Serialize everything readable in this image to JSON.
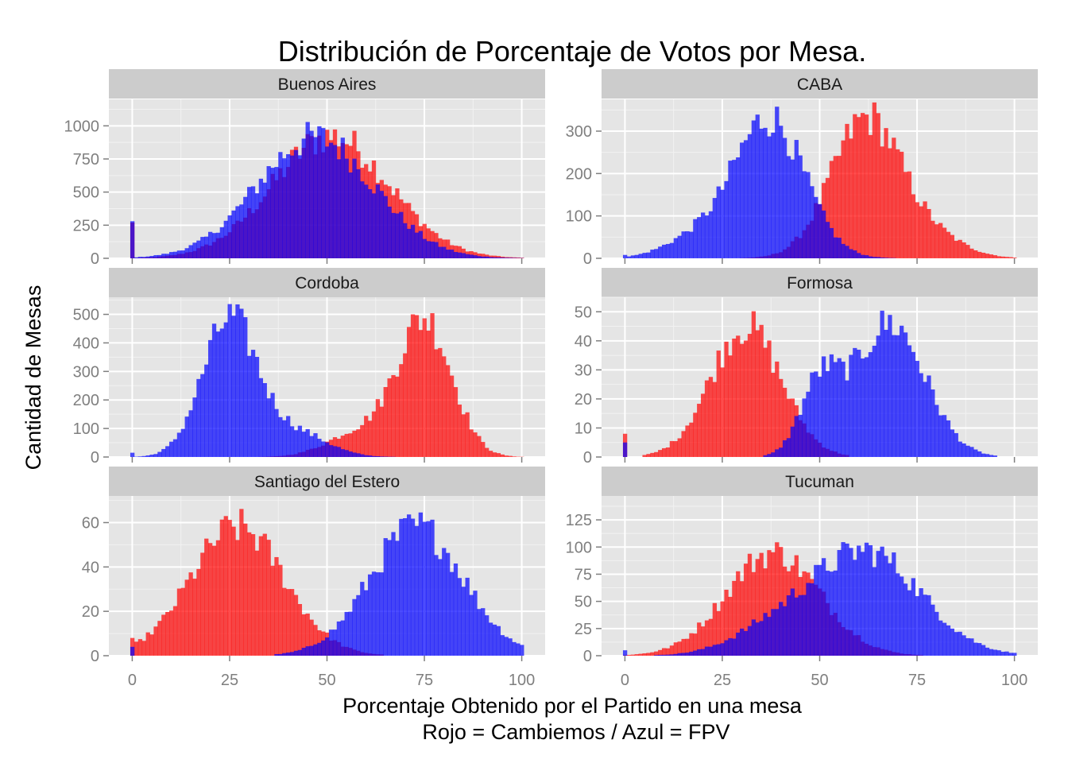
{
  "chart_data": {
    "type": "histogram",
    "title": "Distribución de Porcentaje de Votos por Mesa.",
    "xlabel": "Porcentaje Obtenido por el Partido en una mesa",
    "xlabel_line2": "Rojo = Cambiemos / Azul = FPV",
    "ylabel": "Cantidad de Mesas",
    "xlim": [
      -6,
      106
    ],
    "x_ticks": [
      0,
      25,
      50,
      75,
      100
    ],
    "grid": true,
    "legend": "none",
    "series": [
      {
        "name": "Cambiemos",
        "color": "#ff0000",
        "opacity": 0.7
      },
      {
        "name": "FPV",
        "color": "#0000ff",
        "opacity": 0.7
      }
    ],
    "panels": [
      {
        "name": "Buenos Aires",
        "ylim": [
          0,
          1200
        ],
        "y_ticks": [
          0,
          250,
          500,
          750,
          1000
        ],
        "distributions": {
          "Cambiemos": [
            {
              "mu": 51,
              "sigma": 15,
              "peak": 920
            }
          ],
          "FPV": [
            {
              "mu": 47,
              "sigma": 15,
              "peak": 910
            }
          ]
        },
        "spikes": {
          "Cambiemos": [
            [
              0,
              270
            ]
          ],
          "FPV": [
            [
              0,
              280
            ]
          ]
        }
      },
      {
        "name": "CABA",
        "ylim": [
          0,
          375
        ],
        "y_ticks": [
          0,
          100,
          200,
          300
        ],
        "distributions": {
          "Cambiemos": [
            {
              "mu": 62,
              "sigma": 9,
              "peak": 330
            },
            {
              "mu": 80,
              "sigma": 8,
              "peak": 40
            }
          ],
          "FPV": [
            {
              "mu": 37,
              "sigma": 9,
              "peak": 330
            },
            {
              "mu": 18,
              "sigma": 8,
              "peak": 45
            }
          ]
        },
        "spikes": {
          "FPV": [
            [
              0,
              8
            ]
          ]
        }
      },
      {
        "name": "Cordoba",
        "ylim": [
          0,
          560
        ],
        "y_ticks": [
          0,
          100,
          200,
          300,
          400,
          500
        ],
        "distributions": {
          "Cambiemos": [
            {
              "mu": 75,
              "sigma": 7,
              "peak": 480
            },
            {
              "mu": 58,
              "sigma": 8,
              "peak": 85
            }
          ],
          "FPV": [
            {
              "mu": 25,
              "sigma": 7,
              "peak": 480
            },
            {
              "mu": 42,
              "sigma": 8,
              "peak": 85
            }
          ]
        },
        "spikes": {
          "FPV": [
            [
              0,
              15
            ]
          ]
        }
      },
      {
        "name": "Formosa",
        "ylim": [
          0,
          55
        ],
        "y_ticks": [
          0,
          10,
          20,
          30,
          40,
          50
        ],
        "distributions": {
          "Cambiemos": [
            {
              "mu": 31,
              "sigma": 9,
              "peak": 45
            }
          ],
          "FPV": [
            {
              "mu": 68,
              "sigma": 9,
              "peak": 46
            },
            {
              "mu": 50,
              "sigma": 5,
              "peak": 24
            }
          ]
        },
        "spikes": {
          "Cambiemos": [
            [
              0,
              8
            ]
          ],
          "FPV": [
            [
              0,
              5
            ]
          ]
        }
      },
      {
        "name": "Santiago del Estero",
        "ylim": [
          0,
          72
        ],
        "y_ticks": [
          0,
          20,
          40,
          60
        ],
        "distributions": {
          "Cambiemos": [
            {
              "mu": 27,
              "sigma": 12,
              "peak": 58
            }
          ],
          "FPV": [
            {
              "mu": 73,
              "sigma": 12,
              "peak": 58
            }
          ]
        },
        "spikes": {
          "Cambiemos": [
            [
              0,
              8
            ]
          ],
          "FPV": [
            [
              0,
              4
            ]
          ]
        }
      },
      {
        "name": "Tucuman",
        "ylim": [
          0,
          147
        ],
        "y_ticks": [
          0,
          25,
          50,
          75,
          100,
          125
        ],
        "distributions": {
          "Cambiemos": [
            {
              "mu": 38,
              "sigma": 12,
              "peak": 95
            }
          ],
          "FPV": [
            {
              "mu": 62,
              "sigma": 14,
              "peak": 95
            },
            {
              "mu": 38,
              "sigma": 11,
              "peak": 20
            }
          ]
        },
        "spikes": {
          "FPV": [
            [
              0,
              5
            ]
          ]
        }
      }
    ]
  }
}
